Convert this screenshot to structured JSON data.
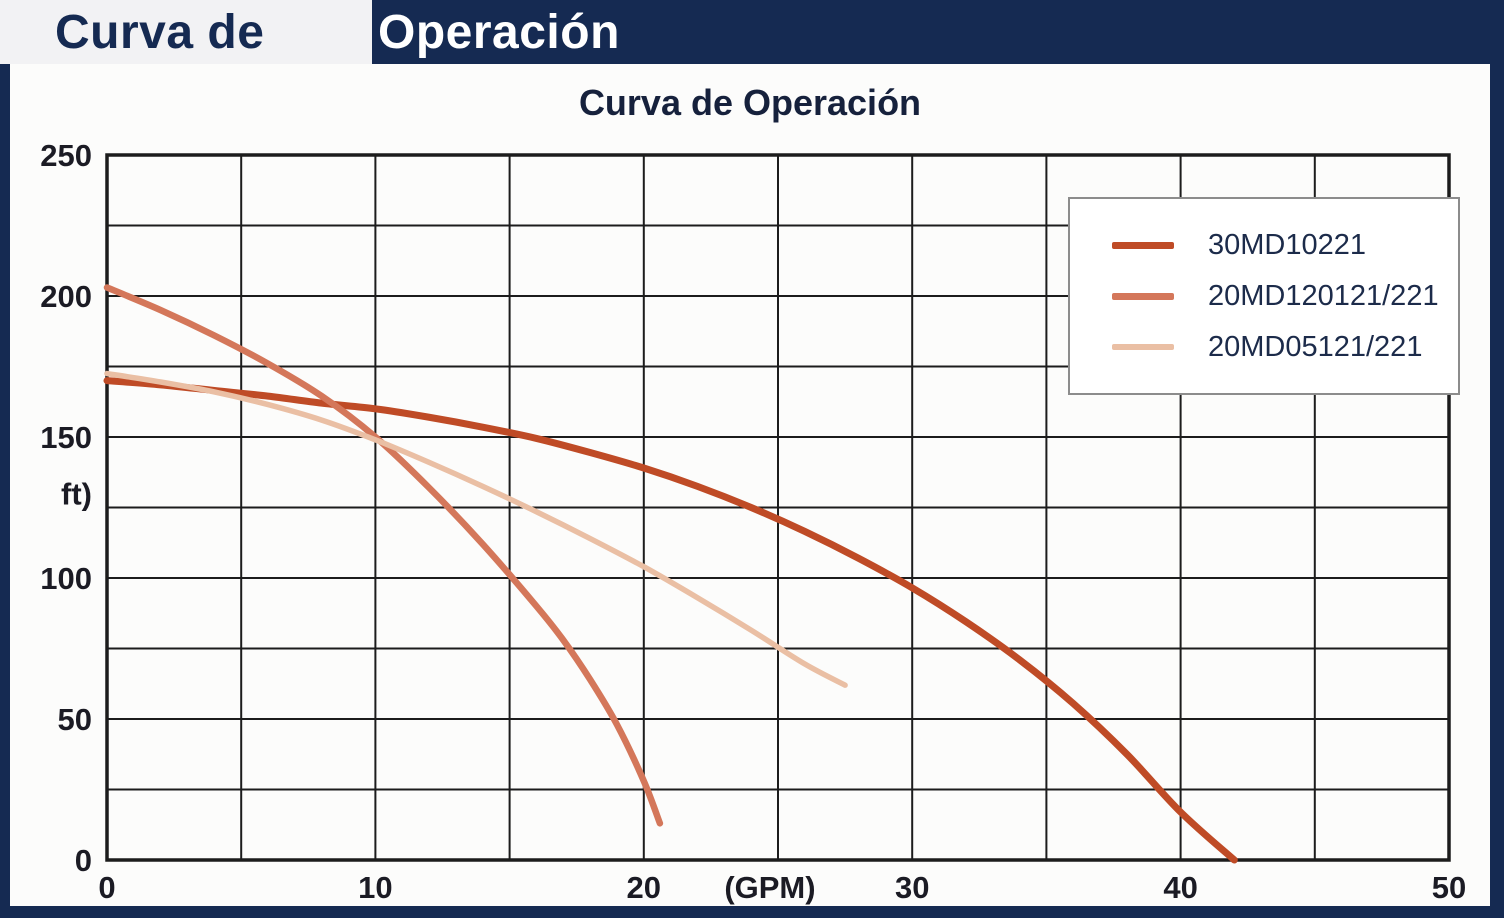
{
  "header": {
    "title_part1": "Curva de",
    "title_part2": "Operación"
  },
  "colors": {
    "frame_navy": "#152a52",
    "header_light_bg": "#f2f2f4",
    "panel_bg": "#fcfcfb",
    "grid": "#1c1c1c",
    "tick_text": "#1b1b24",
    "title_text": "#16213c",
    "legend_border": "#8c8c8c",
    "series1": "#bf4b26",
    "series2": "#d4775a",
    "series3": "#eabfa4"
  },
  "chart_data": {
    "type": "line",
    "title": "Curva de Operación",
    "xlabel": "(GPM)",
    "ylabel": "ft)",
    "xlim": [
      0,
      50
    ],
    "ylim": [
      0,
      250
    ],
    "x_grid_step": 5,
    "y_grid_step": 25,
    "x_ticks": [
      "0",
      "10",
      "20",
      "30",
      "40",
      "50"
    ],
    "x_tick_values": [
      0,
      10,
      20,
      30,
      40,
      50
    ],
    "y_ticks": [
      "0",
      "50",
      "100",
      "150",
      "200",
      "250"
    ],
    "y_tick_values": [
      0,
      50,
      100,
      150,
      200,
      250
    ],
    "xlabel_position_x": 24.7,
    "ylabel_position_y": 130,
    "grid": true,
    "legend_position": "top-right",
    "series": [
      {
        "name": "30MD10221",
        "color": "#bf4b26",
        "stroke_width": 7,
        "points": [
          [
            0,
            170
          ],
          [
            2,
            168.5
          ],
          [
            4,
            166.5
          ],
          [
            6,
            164.5
          ],
          [
            8,
            162
          ],
          [
            10,
            160
          ],
          [
            12,
            157
          ],
          [
            14,
            153.5
          ],
          [
            16,
            149.5
          ],
          [
            18,
            144.5
          ],
          [
            20,
            139
          ],
          [
            22,
            132.5
          ],
          [
            24,
            125
          ],
          [
            26,
            116.5
          ],
          [
            28,
            107
          ],
          [
            30,
            96.5
          ],
          [
            32,
            84.5
          ],
          [
            34,
            71
          ],
          [
            36,
            55.5
          ],
          [
            38,
            37.5
          ],
          [
            40,
            17
          ],
          [
            42,
            0
          ]
        ]
      },
      {
        "name": "20MD120121/221",
        "color": "#d4775a",
        "stroke_width": 6.5,
        "points": [
          [
            0,
            203
          ],
          [
            2,
            195
          ],
          [
            4,
            186
          ],
          [
            6,
            176
          ],
          [
            8,
            164.5
          ],
          [
            10,
            150
          ],
          [
            12,
            132
          ],
          [
            14,
            112
          ],
          [
            16,
            90
          ],
          [
            17,
            78
          ],
          [
            18,
            64
          ],
          [
            19,
            48
          ],
          [
            20,
            28
          ],
          [
            20.6,
            13
          ]
        ]
      },
      {
        "name": "20MD05121/221",
        "color": "#eabfa4",
        "stroke_width": 5.5,
        "points": [
          [
            0,
            172.5
          ],
          [
            2,
            169.5
          ],
          [
            4,
            166
          ],
          [
            6,
            161.5
          ],
          [
            8,
            156
          ],
          [
            10,
            149
          ],
          [
            12,
            141
          ],
          [
            14,
            132.5
          ],
          [
            16,
            123.5
          ],
          [
            18,
            114
          ],
          [
            20,
            104
          ],
          [
            22,
            93
          ],
          [
            24,
            81.5
          ],
          [
            26,
            69.5
          ],
          [
            27.5,
            62
          ]
        ]
      }
    ]
  }
}
